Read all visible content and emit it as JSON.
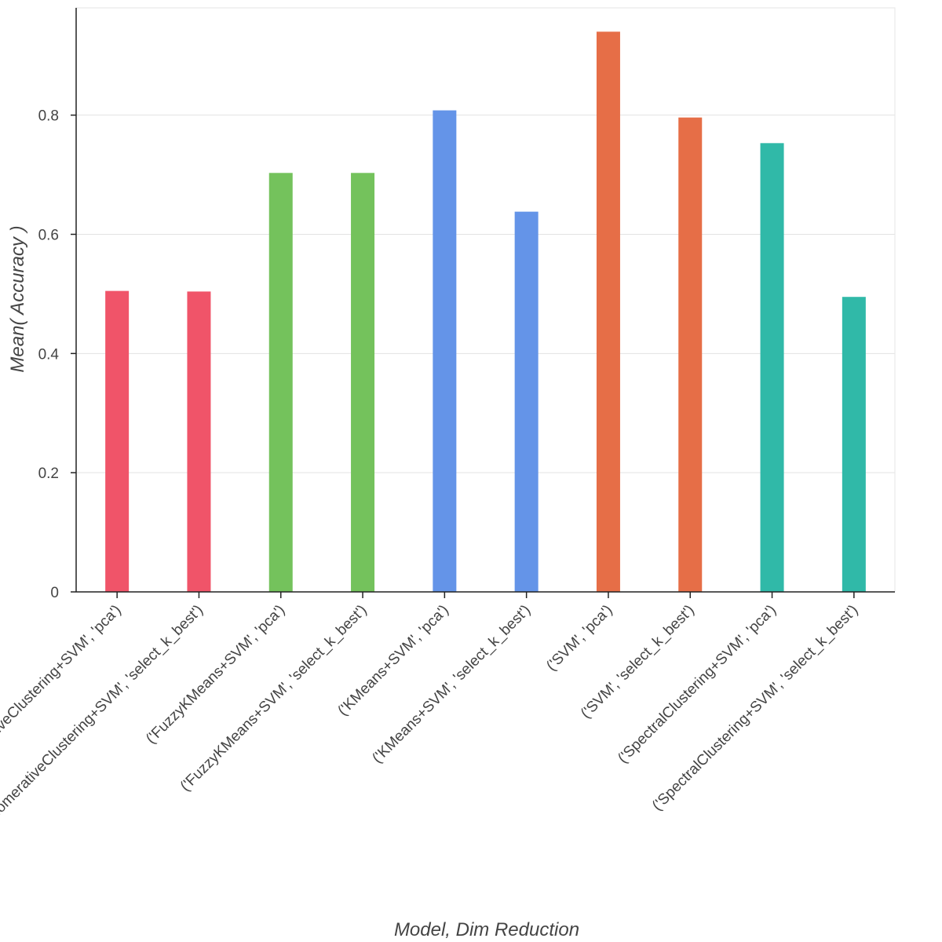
{
  "chart_data": {
    "type": "bar",
    "title": "",
    "xlabel": "Model, Dim Reduction",
    "ylabel": "Mean( Accuracy )",
    "ylim": [
      0,
      0.98
    ],
    "yticks": [
      0,
      0.2,
      0.4,
      0.6,
      0.8
    ],
    "ytick_labels": [
      "0",
      "0.2",
      "0.4",
      "0.6",
      "0.8"
    ],
    "grid": true,
    "categories": [
      "('AgglomerativeClustering+SVM', 'pca')",
      "('AgglomerativeClustering+SVM', 'select_k_best')",
      "('FuzzyKMeans+SVM', 'pca')",
      "('FuzzyKMeans+SVM', 'select_k_best')",
      "('KMeans+SVM', 'pca')",
      "('KMeans+SVM', 'select_k_best')",
      "('SVM', 'pca')",
      "('SVM', 'select_k_best')",
      "('SpectralClustering+SVM', 'pca')",
      "('SpectralClustering+SVM', 'select_k_best')"
    ],
    "values": [
      0.505,
      0.504,
      0.703,
      0.703,
      0.808,
      0.638,
      0.94,
      0.796,
      0.753,
      0.495
    ],
    "colors": [
      "#f05469",
      "#f05469",
      "#74c25c",
      "#74c25c",
      "#6494e8",
      "#6494e8",
      "#e66e47",
      "#e66e47",
      "#30b9a8",
      "#30b9a8"
    ]
  }
}
